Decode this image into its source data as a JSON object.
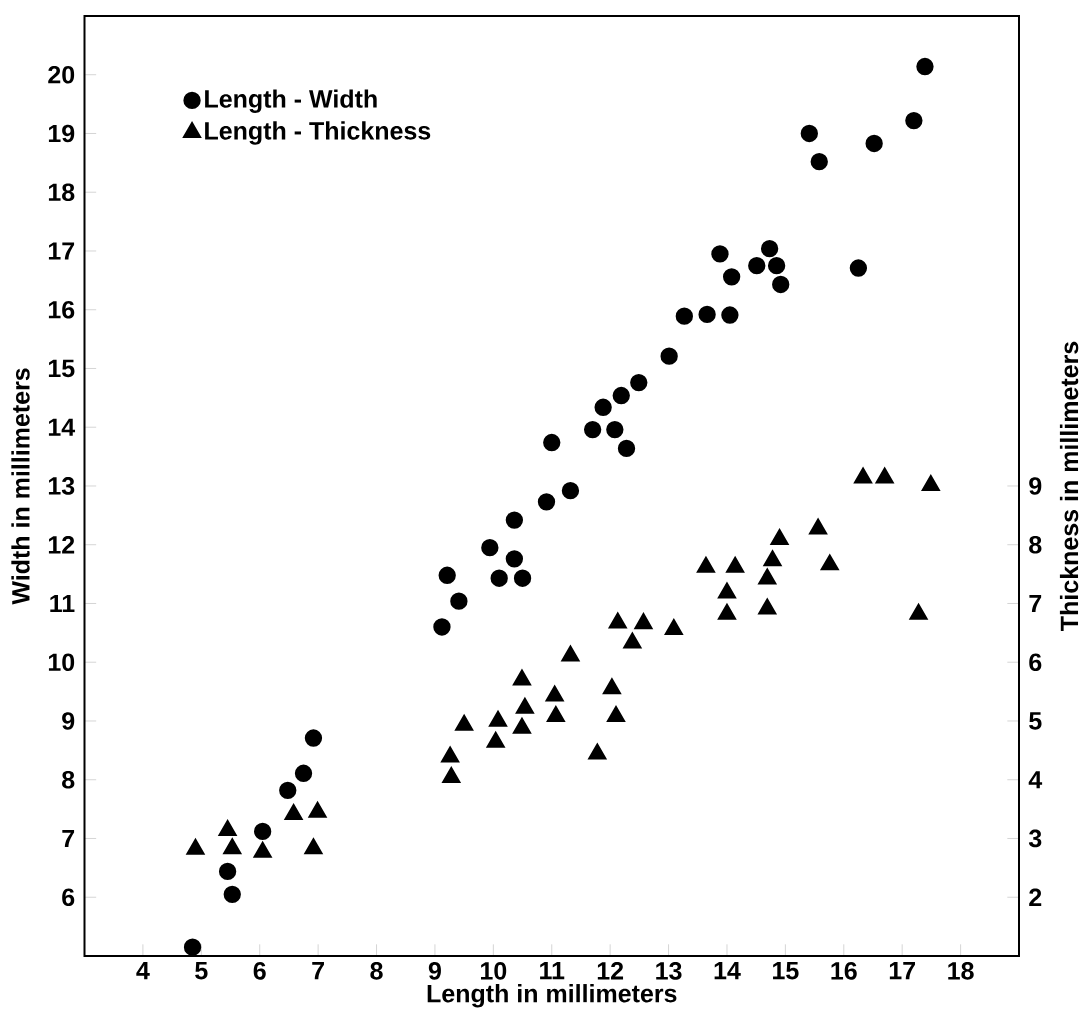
{
  "chart_data": {
    "type": "scatter",
    "xlabel": "Length in millimeters",
    "ylabel": "Width in millimeters",
    "y2label": "Thickness in millimeters",
    "xlim": [
      3,
      19
    ],
    "ylim": [
      5,
      21
    ],
    "y2lim": [
      1,
      17
    ],
    "xticks": [
      4,
      5,
      6,
      7,
      8,
      9,
      10,
      11,
      12,
      13,
      14,
      15,
      16,
      17,
      18
    ],
    "yticks": [
      6,
      7,
      8,
      9,
      10,
      11,
      12,
      13,
      14,
      15,
      16,
      17,
      18,
      19,
      20
    ],
    "y2ticks": [
      2,
      3,
      4,
      5,
      6,
      7,
      8,
      9
    ],
    "legend": "top left",
    "series": [
      {
        "name": "Length - Width",
        "color": "#000000",
        "marker": "circle",
        "x": [
          4.85,
          5.45,
          5.53,
          6.05,
          6.48,
          6.75,
          6.92,
          9.21,
          9.41,
          9.12,
          9.94,
          10.36,
          10.36,
          10.1,
          10.5,
          13.01,
          12.49,
          12.19,
          11.88,
          11.7,
          12.08,
          12.28,
          11.0,
          11.32,
          10.91,
          17.39,
          17.2,
          16.52,
          15.41,
          15.58,
          13.88,
          14.08,
          14.51,
          14.73,
          14.85,
          14.92,
          16.25,
          13.27,
          13.66,
          14.05
        ],
        "values": [
          5.15,
          6.44,
          6.05,
          7.12,
          7.82,
          8.11,
          8.71,
          11.48,
          11.04,
          10.6,
          11.95,
          12.42,
          11.76,
          11.43,
          11.43,
          15.21,
          14.76,
          14.54,
          14.34,
          13.96,
          13.96,
          13.64,
          13.74,
          12.92,
          12.73,
          20.14,
          19.22,
          18.83,
          19.0,
          18.52,
          16.95,
          16.56,
          16.75,
          17.04,
          16.75,
          16.43,
          16.71,
          15.89,
          15.92,
          15.91
        ]
      },
      {
        "name": "Length - Thickness",
        "color": "#000000",
        "marker": "triangle",
        "axis": "y2",
        "x": [
          4.9,
          5.45,
          5.53,
          6.05,
          6.58,
          6.99,
          6.92,
          9.26,
          9.28,
          9.5,
          10.08,
          10.04,
          10.54,
          10.49,
          10.49,
          11.05,
          11.07,
          12.03,
          12.1,
          11.78,
          16.33,
          16.7,
          17.49,
          15.56,
          14.9,
          14.78,
          15.76,
          13.64,
          14.14,
          14.69,
          14.0,
          14.0,
          14.69,
          17.28,
          12.13,
          12.57,
          12.38,
          13.09,
          11.32
        ],
        "values": [
          2.82,
          3.14,
          2.83,
          2.77,
          3.41,
          3.45,
          2.83,
          4.39,
          4.04,
          4.93,
          5.0,
          4.64,
          5.22,
          4.88,
          5.7,
          5.43,
          5.08,
          5.55,
          5.08,
          4.44,
          9.14,
          9.14,
          9.01,
          8.27,
          8.09,
          7.73,
          7.66,
          7.62,
          7.62,
          7.42,
          7.18,
          6.82,
          6.91,
          6.82,
          6.67,
          6.66,
          6.33,
          6.56,
          6.11
        ]
      }
    ]
  }
}
